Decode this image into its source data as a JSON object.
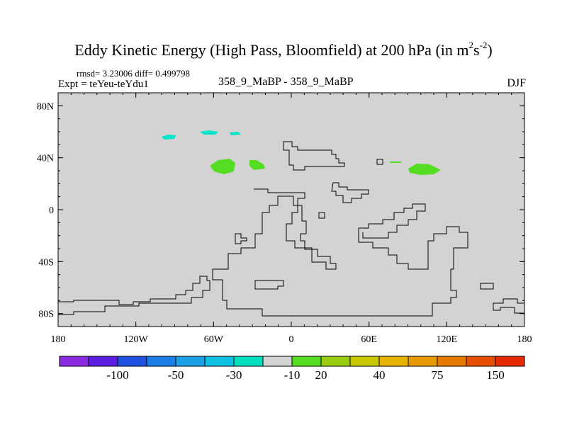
{
  "figure": {
    "title_main": "Eddy Kinetic Energy (High Pass, Bloomfield) at 200 hPa (in m",
    "title_sup1": "2",
    "title_s": "s",
    "title_sup2": "-2",
    "title_end": ")",
    "stats": "rmsd= 3.23006 diff= 0.499798",
    "expt": "Expt = teYeu-teYdu1",
    "experiment_label": "358_9_MaBP - 358_9_MaBP",
    "season": "DJF"
  },
  "map": {
    "background_color": "#d3d3d3",
    "lat_labels": [
      "80N",
      "40N",
      "0",
      "40S",
      "80S"
    ],
    "lat_values": [
      80,
      40,
      0,
      -40,
      -80
    ],
    "lon_labels": [
      "180",
      "120W",
      "60W",
      "0",
      "60E",
      "120E",
      "180"
    ],
    "lon_values": [
      -180,
      -120,
      -60,
      0,
      60,
      120,
      180
    ],
    "anomaly_patches": [
      {
        "label": "cyan patch",
        "color": "#00e6c8",
        "lon": -95,
        "lat": 56
      },
      {
        "label": "cyan patch",
        "color": "#00e6c8",
        "lon": -63,
        "lat": 60
      },
      {
        "label": "cyan patch",
        "color": "#00e6c8",
        "lon": -43,
        "lat": 59
      },
      {
        "label": "green patch",
        "color": "#55dd22",
        "lon": -53,
        "lat": 34
      },
      {
        "label": "green patch",
        "color": "#55dd22",
        "lon": -27,
        "lat": 35
      },
      {
        "label": "green patch",
        "color": "#55dd22",
        "lon": 103,
        "lat": 31
      },
      {
        "label": "green patch",
        "color": "#55dd22",
        "lon": 80,
        "lat": 37
      }
    ]
  },
  "colorbar": {
    "colors": [
      "#8a2be2",
      "#5a1fe0",
      "#1f52e0",
      "#1a7ee6",
      "#1aa0e6",
      "#10c0e0",
      "#00e0c0",
      "#d3d3d3",
      "#55dd22",
      "#99cc11",
      "#c8c800",
      "#e6b400",
      "#e69a00",
      "#e67a00",
      "#e64f00",
      "#e62a00"
    ],
    "labels": [
      "-100",
      "-50",
      "-30",
      "-10",
      "20",
      "40",
      "75",
      "150"
    ]
  }
}
